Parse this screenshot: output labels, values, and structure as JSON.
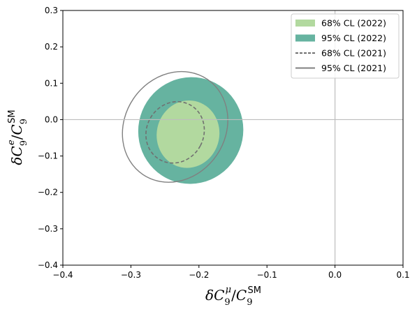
{
  "chart_data": {
    "type": "contour",
    "title": "",
    "xlabel": "δC₉^μ/C₉^SM",
    "ylabel": "δC₉^e/C₉^SM",
    "xlim": [
      -0.4,
      0.1
    ],
    "ylim": [
      -0.4,
      0.3
    ],
    "x_ticks": [
      -0.4,
      -0.3,
      -0.2,
      -0.1,
      0.0,
      0.1
    ],
    "x_tick_labels": [
      "−0.4",
      "−0.3",
      "−0.2",
      "−0.1",
      "0.0",
      "0.1"
    ],
    "y_ticks": [
      -0.4,
      -0.3,
      -0.2,
      -0.1,
      0.0,
      0.1,
      0.2,
      0.3
    ],
    "y_tick_labels": [
      "−0.4",
      "−0.3",
      "−0.2",
      "−0.1",
      "0.0",
      "0.1",
      "0.2",
      "0.3"
    ],
    "reference_lines": {
      "x": 0.0,
      "y": 0.0,
      "color": "#bdbdbd"
    },
    "grid": false,
    "legend_position": "top-right",
    "series": [
      {
        "name": "68% CL (2022)",
        "style": "filled",
        "color": "#b2d99f",
        "region": {
          "center": [
            -0.216,
            -0.04
          ],
          "sx": 0.046,
          "sy": 0.093,
          "rot_deg": 12
        }
      },
      {
        "name": "95% CL (2022)",
        "style": "filled",
        "color": "#66b3a0",
        "region": {
          "center": [
            -0.212,
            -0.03
          ],
          "sx": 0.077,
          "sy": 0.147,
          "rot_deg": 22
        }
      },
      {
        "name": "68% CL (2021)",
        "style": "dashed-line",
        "color": "#707070",
        "region": {
          "center": [
            -0.235,
            -0.035
          ],
          "sx": 0.042,
          "sy": 0.086,
          "rot_deg": 28
        }
      },
      {
        "name": "95% CL (2021)",
        "style": "solid-line",
        "color": "#808080",
        "region": {
          "center": [
            -0.235,
            -0.02
          ],
          "sx": 0.074,
          "sy": 0.158,
          "rot_deg": 34
        }
      }
    ]
  }
}
